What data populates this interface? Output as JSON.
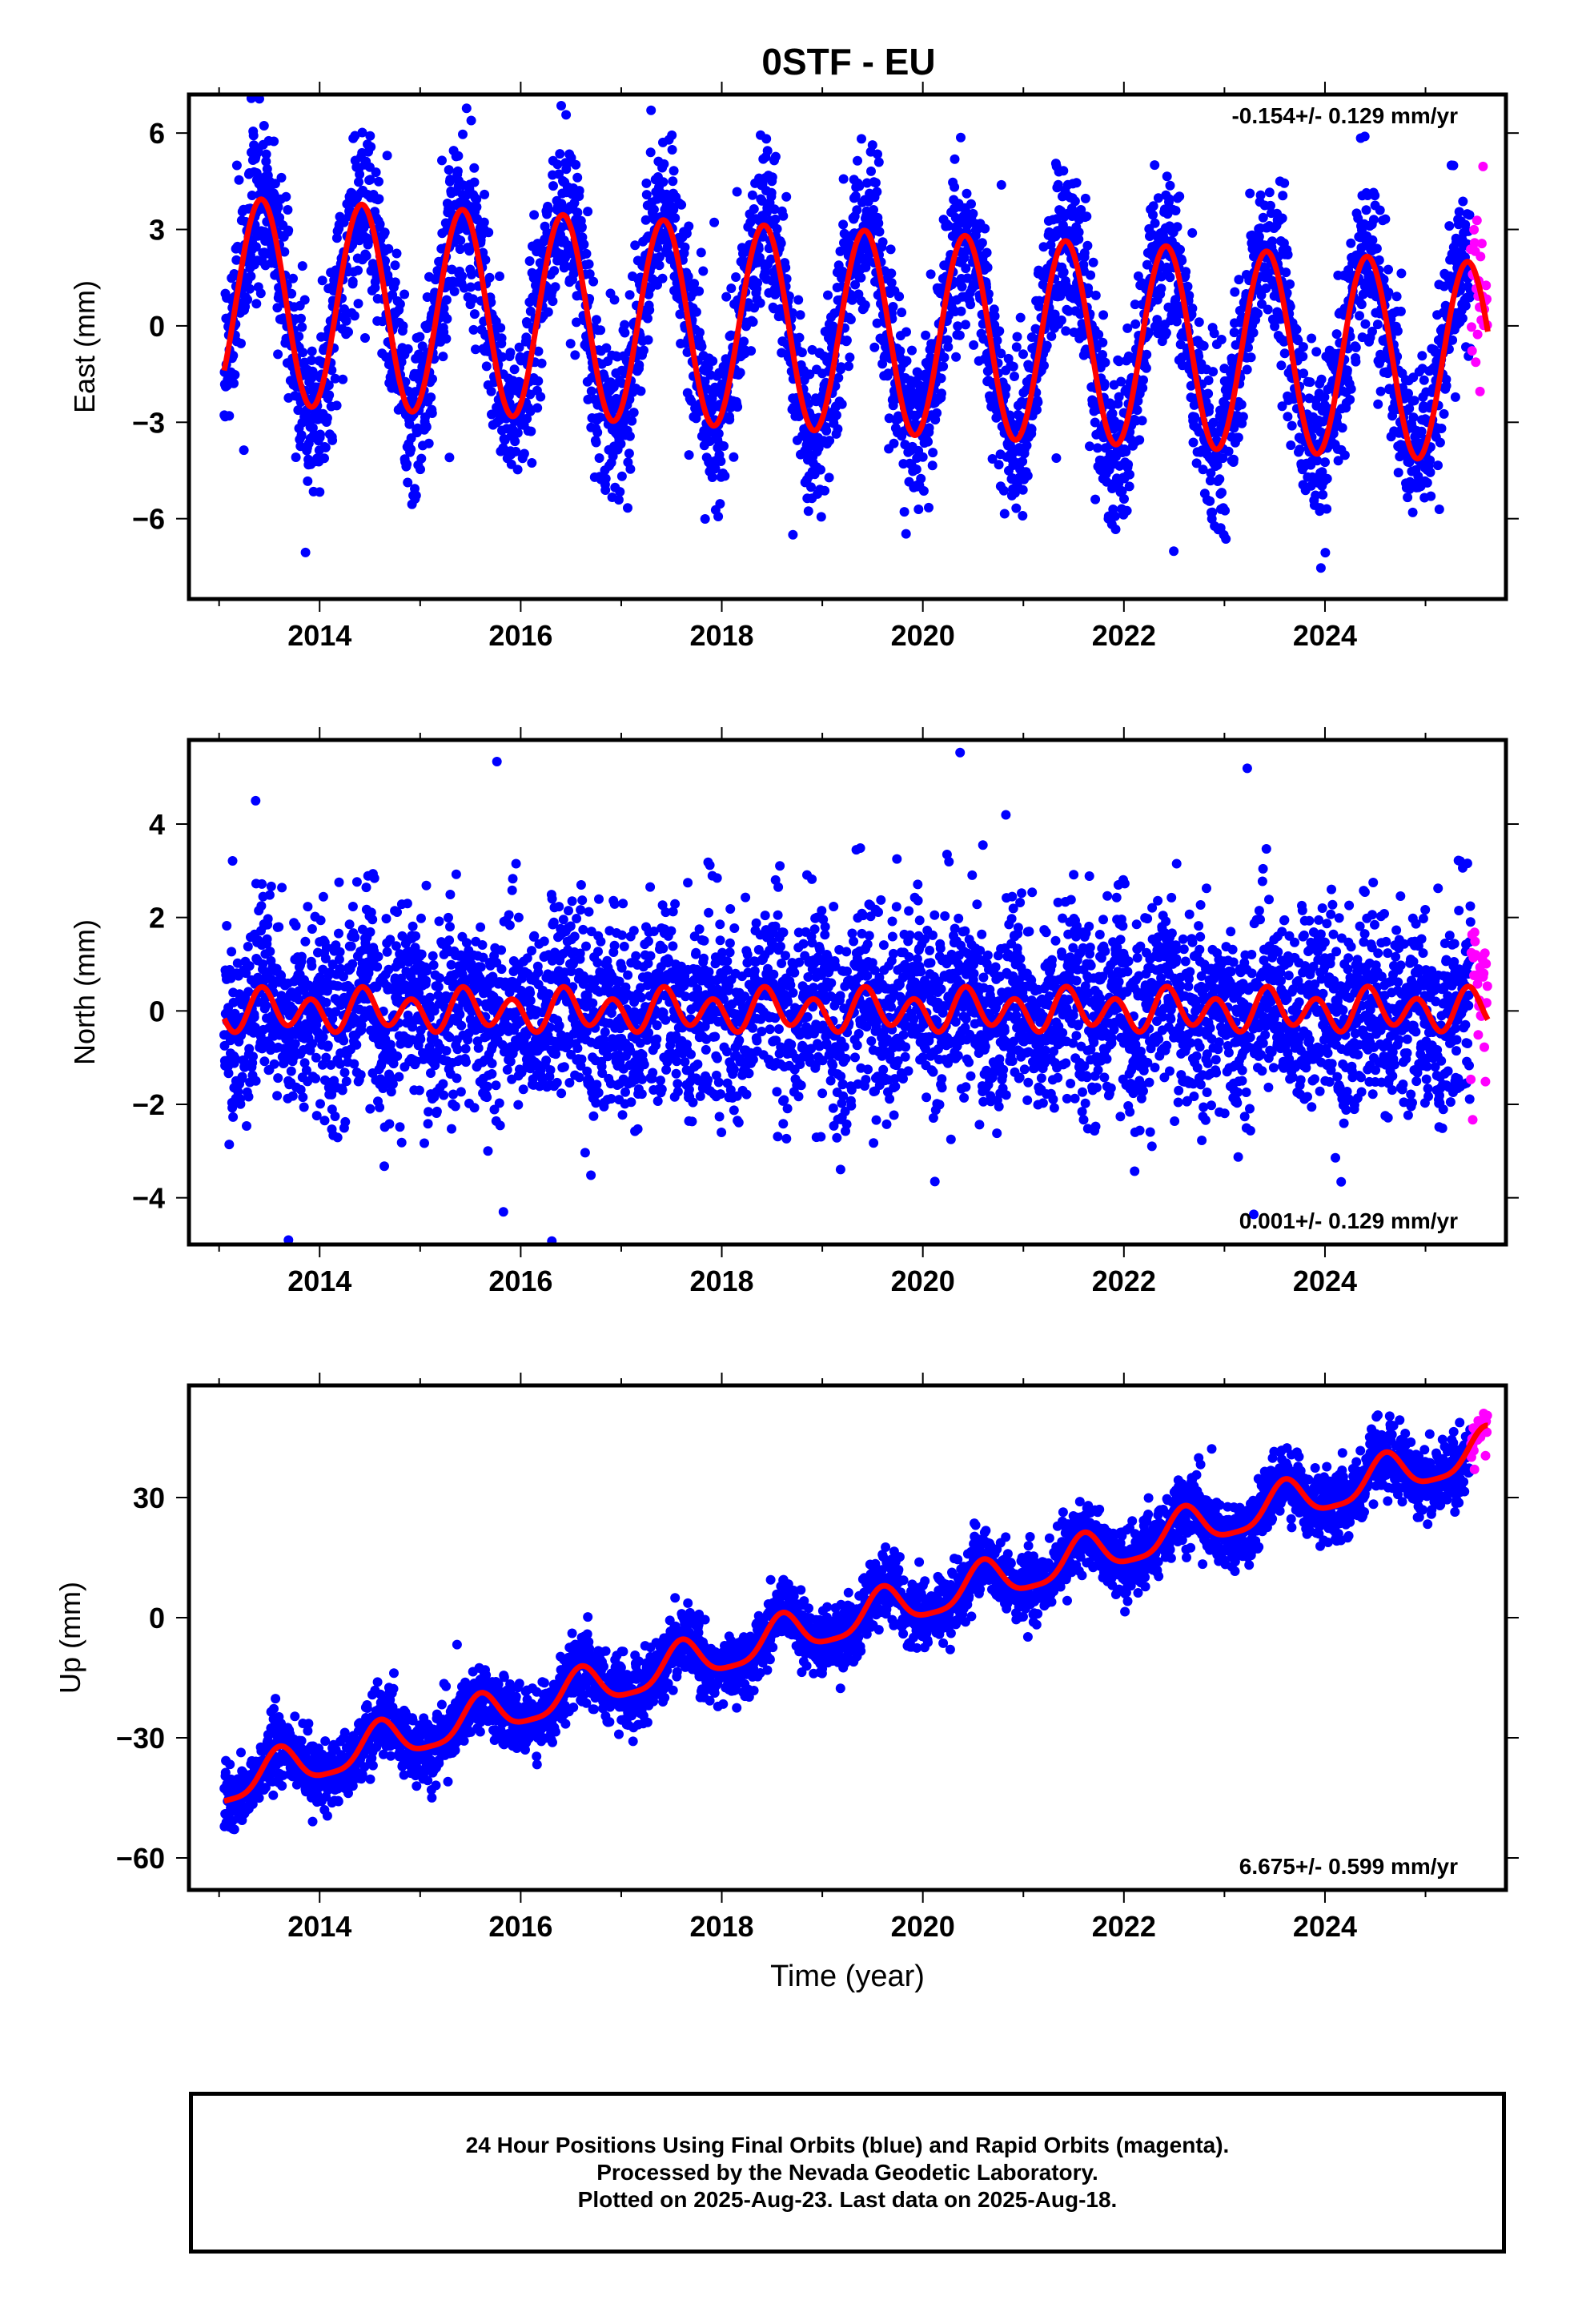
{
  "colors": {
    "final_orbits": "#0000ff",
    "rapid_orbits": "#ff00ff",
    "model_fit": "#ff0000",
    "frame": "#000000"
  },
  "title": "0STF - EU",
  "footer": {
    "line1": "24 Hour Positions Using Final Orbits (blue) and Rapid Orbits (magenta).",
    "line2": "Processed by the Nevada Geodetic Laboratory.",
    "line3": "Plotted on 2025-Aug-23. Last data on 2025-Aug-18."
  },
  "chart_data": [
    {
      "type": "scatter",
      "title": "0STF - EU",
      "ylabel": "East (mm)",
      "xlabel": "",
      "xlim": [
        2012.7,
        2025.8
      ],
      "ylim": [
        -8.5,
        7.2
      ],
      "xticks": [
        "2014",
        "2016",
        "2018",
        "2020",
        "2022",
        "2024"
      ],
      "yticks": [
        "6",
        "3",
        "0",
        "−3",
        "−6"
      ],
      "ytick_values": [
        6,
        3,
        0,
        -3,
        -6
      ],
      "rate_label": "-0.154+/- 0.129 mm/yr",
      "rate_position": "top-right",
      "series": [
        {
          "kind": "points",
          "color": "#0000ff",
          "x_start": 2013.05,
          "x_end": 2025.45,
          "noise": 1.3,
          "outliers": 0.02
        },
        {
          "kind": "points",
          "color": "#ff00ff",
          "x_start": 2025.45,
          "x_end": 2025.62,
          "noise": 1.8,
          "outliers": 0
        },
        {
          "kind": "line",
          "color": "#ff0000",
          "x_start": 2013.05,
          "x_end": 2025.62
        }
      ],
      "model": {
        "offset": 0.8,
        "trend": -0.154,
        "annual_amp_start": 3.2,
        "annual_amp_end": 3.1,
        "annual_peak": 2013.42,
        "semiannual_amp": 0.0,
        "semiannual_peak": 0
      }
    },
    {
      "type": "scatter",
      "ylabel": "North (mm)",
      "xlabel": "",
      "xlim": [
        2012.7,
        2025.8
      ],
      "ylim": [
        -5.0,
        5.8
      ],
      "xticks": [
        "2014",
        "2016",
        "2018",
        "2020",
        "2022",
        "2024"
      ],
      "yticks": [
        "4",
        "2",
        "0",
        "−2",
        "−4"
      ],
      "ytick_values": [
        4,
        2,
        0,
        -2,
        -4
      ],
      "rate_label": "0.001+/- 0.129 mm/yr",
      "rate_position": "bottom-right",
      "series": [
        {
          "kind": "points",
          "color": "#0000ff",
          "x_start": 2013.05,
          "x_end": 2025.45,
          "noise": 1.05,
          "outliers": 0.02
        },
        {
          "kind": "points",
          "color": "#ff00ff",
          "x_start": 2025.45,
          "x_end": 2025.62,
          "noise": 1.1,
          "outliers": 0
        },
        {
          "kind": "line",
          "color": "#ff0000",
          "x_start": 2013.05,
          "x_end": 2025.62
        }
      ],
      "model": {
        "offset": 0.0,
        "trend": 0.001,
        "annual_amp_start": 0.15,
        "annual_amp_end": 0.15,
        "annual_peak": 2013.5,
        "semiannual_amp": 0.38,
        "semiannual_peak": 2013.42
      }
    },
    {
      "type": "scatter",
      "ylabel": "Up (mm)",
      "xlabel": "Time (year)",
      "xlim": [
        2012.7,
        2025.8
      ],
      "ylim": [
        -68,
        58
      ],
      "xticks": [
        "2014",
        "2016",
        "2018",
        "2020",
        "2022",
        "2024"
      ],
      "yticks": [
        "30",
        "0",
        "−30",
        "−60"
      ],
      "ytick_values": [
        30,
        0,
        -30,
        -60
      ],
      "rate_label": "6.675+/- 0.599 mm/yr",
      "rate_position": "bottom-right",
      "series": [
        {
          "kind": "points",
          "color": "#0000ff",
          "x_start": 2013.05,
          "x_end": 2025.45,
          "noise": 4.2,
          "outliers": 0.01
        },
        {
          "kind": "points",
          "color": "#ff00ff",
          "x_start": 2025.45,
          "x_end": 2025.62,
          "noise": 3.5,
          "outliers": 0
        },
        {
          "kind": "line",
          "color": "#ff0000",
          "x_start": 2013.05,
          "x_end": 2025.62
        }
      ],
      "model": {
        "offset": -42.0,
        "trend": 6.675,
        "annual_amp_start": 5.0,
        "annual_amp_end": 5.0,
        "annual_peak": 2013.6,
        "semiannual_amp": 1.2,
        "semiannual_peak": 2013.6
      }
    }
  ]
}
